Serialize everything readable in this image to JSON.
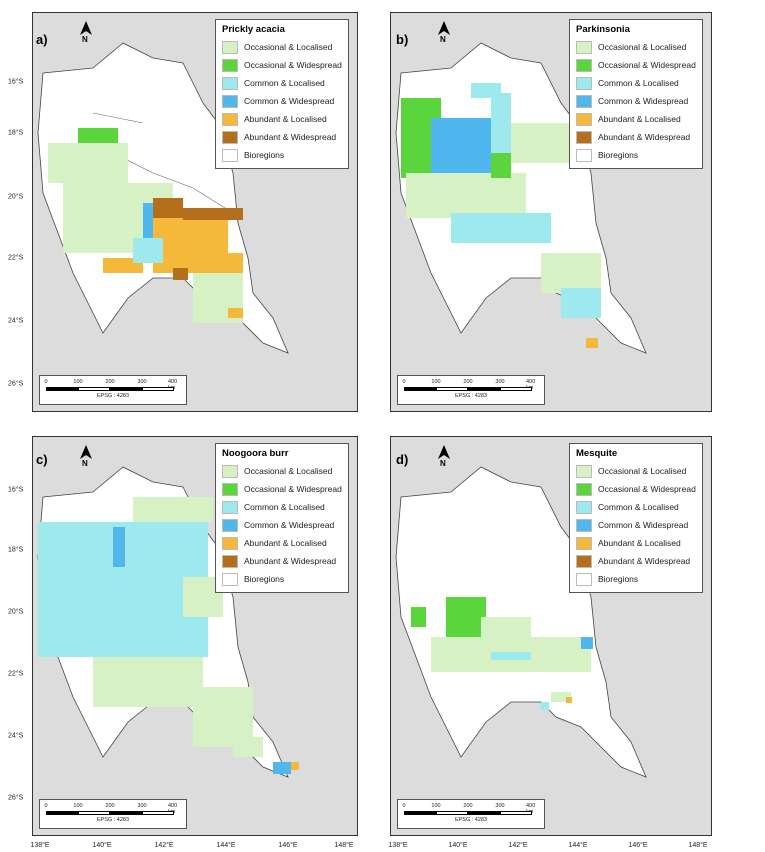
{
  "legend_categories": [
    {
      "label": "Occasional & Localised",
      "color": "#d6f2c4"
    },
    {
      "label": "Occasional & Widespread",
      "color": "#5ad53c"
    },
    {
      "label": "Common & Localised",
      "color": "#9ee9ee"
    },
    {
      "label": "Common & Widespread",
      "color": "#4fb6ee"
    },
    {
      "label": "Abundant & Localised",
      "color": "#f4b93a"
    },
    {
      "label": "Abundant & Widespread",
      "color": "#b56f1c"
    },
    {
      "label": "Bioregions",
      "color": "#ffffff"
    }
  ],
  "axis_labels": {
    "longitude": [
      "138°E",
      "140°E",
      "142°E",
      "144°E",
      "146°E",
      "148°E"
    ],
    "latitude": [
      "16°S",
      "18°S",
      "20°S",
      "22°S",
      "24°S",
      "26°S"
    ]
  },
  "scale_bar": {
    "ticks": [
      "0",
      "100",
      "200",
      "300",
      "400 km"
    ],
    "crs": "EPSG : 4283"
  },
  "north_arrow": {
    "letter": "N",
    "icon": "north-arrow-icon"
  },
  "panels": [
    {
      "id": "a",
      "label": "a)",
      "title": "Prickly acacia",
      "legend": [
        "Occasional & Localised",
        "Occasional & Widespread",
        "Common & Localised",
        "Common & Widespread",
        "Abundant & Localised",
        "Abundant & Widespread",
        "Bioregions"
      ]
    },
    {
      "id": "b",
      "label": "b)",
      "title": "Parkinsonia",
      "legend": [
        "Occasional & Localised",
        "Occasional & Widespread",
        "Common & Localised",
        "Common & Widespread",
        "Abundant & Localised",
        "Abundant & Widespread",
        "Bioregions"
      ]
    },
    {
      "id": "c",
      "label": "c)",
      "title": "Noogoora burr",
      "legend": [
        "Occasional & Localised",
        "Occasional & Widespread",
        "Common & Localised",
        "Common & Widespread",
        "Abundant & Localised",
        "Abundant & Widespread",
        "Bioregions"
      ]
    },
    {
      "id": "d",
      "label": "d)",
      "title": "Mesquite",
      "legend": [
        "Occasional & Localised",
        "Occasional & Widespread",
        "Common & Localised",
        "Common & Widespread",
        "Abundant & Localised",
        "Abundant & Widespread",
        "Bioregions"
      ]
    }
  ],
  "colors": {
    "background_land": "#dcdcdc",
    "study_area": "#ffffff",
    "frame": "#333333"
  }
}
